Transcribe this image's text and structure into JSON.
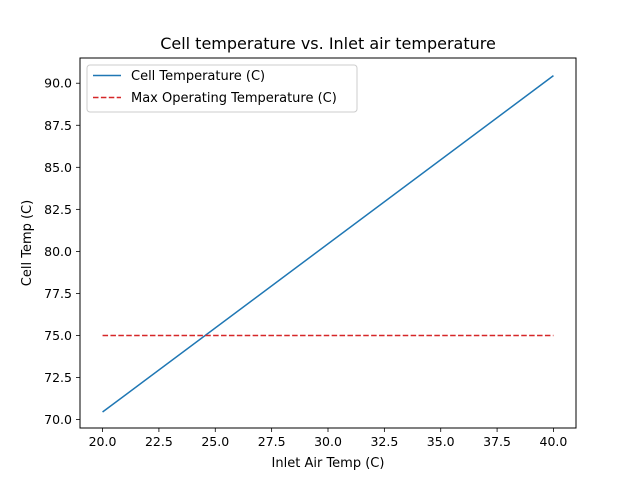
{
  "chart_data": {
    "type": "line",
    "title": "Cell temperature vs. Inlet air temperature",
    "xlabel": "Inlet Air Temp (C)",
    "ylabel": "Cell Temp (C)",
    "xlim": [
      19.0,
      41.0
    ],
    "ylim": [
      69.5,
      91.5
    ],
    "xticks": [
      20.0,
      22.5,
      25.0,
      27.5,
      30.0,
      32.5,
      35.0,
      37.5,
      40.0
    ],
    "xtick_labels": [
      "20.0",
      "22.5",
      "25.0",
      "27.5",
      "30.0",
      "32.5",
      "35.0",
      "37.5",
      "40.0"
    ],
    "yticks": [
      70.0,
      72.5,
      75.0,
      77.5,
      80.0,
      82.5,
      85.0,
      87.5,
      90.0
    ],
    "ytick_labels": [
      "70.0",
      "72.5",
      "75.0",
      "77.5",
      "80.0",
      "82.5",
      "85.0",
      "87.5",
      "90.0"
    ],
    "grid": false,
    "legend_position": "upper-left",
    "series": [
      {
        "name": "Cell Temperature (C)",
        "color": "#1f77b4",
        "style": "solid",
        "x": [
          20.0,
          40.0
        ],
        "y": [
          70.45,
          90.45
        ]
      },
      {
        "name": "Max Operating Temperature (C)",
        "color": "#d62728",
        "style": "dashed",
        "x": [
          20.0,
          40.0
        ],
        "y": [
          75.0,
          75.0
        ]
      }
    ]
  }
}
